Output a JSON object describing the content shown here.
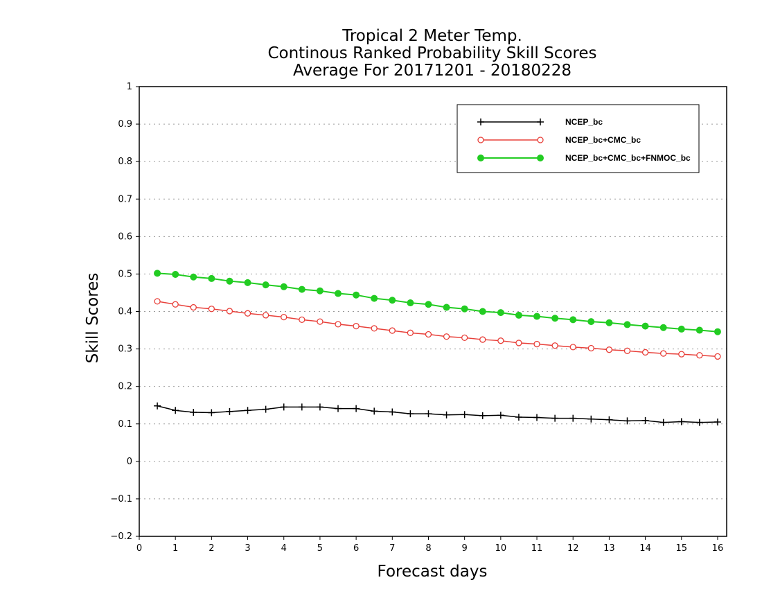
{
  "colors": {
    "NCEP_bc": "#000000",
    "NCEP_bc+CMC_bc": "#e8403a",
    "NCEP_bc+CMC_bc+FNMOC_bc": "#22cc22",
    "grid": "#9a9a9a"
  },
  "chart_data": {
    "type": "line",
    "title": [
      "Tropical 2 Meter Temp.",
      "Continous Ranked Probability Skill Scores",
      "Average For 20171201 - 20180228"
    ],
    "xlabel": "Forecast days",
    "ylabel": "Skill Scores",
    "xlim": [
      0,
      16.25
    ],
    "ylim": [
      -0.2,
      1
    ],
    "x_ticks": [
      0,
      1,
      2,
      3,
      4,
      5,
      6,
      7,
      8,
      9,
      10,
      11,
      12,
      13,
      14,
      15,
      16
    ],
    "y_ticks": [
      -0.2,
      -0.1,
      0,
      0.1,
      0.2,
      0.3,
      0.4,
      0.5,
      0.6,
      0.7,
      0.8,
      0.9,
      1
    ],
    "grid": "y-dotted",
    "legend_position": "top-right",
    "x": [
      0.5,
      1,
      1.5,
      2,
      2.5,
      3,
      3.5,
      4,
      4.5,
      5,
      5.5,
      6,
      6.5,
      7,
      7.5,
      8,
      8.5,
      9,
      9.5,
      10,
      10.5,
      11,
      11.5,
      12,
      12.5,
      13,
      13.5,
      14,
      14.5,
      15,
      15.5,
      16
    ],
    "series": [
      {
        "name": "NCEP_bc",
        "marker": "plus",
        "values": [
          0.148,
          0.136,
          0.131,
          0.13,
          0.133,
          0.136,
          0.139,
          0.145,
          0.145,
          0.145,
          0.141,
          0.141,
          0.134,
          0.132,
          0.127,
          0.127,
          0.124,
          0.125,
          0.122,
          0.123,
          0.118,
          0.117,
          0.115,
          0.115,
          0.113,
          0.111,
          0.108,
          0.109,
          0.104,
          0.106,
          0.104,
          0.105
        ]
      },
      {
        "name": "NCEP_bc+CMC_bc",
        "marker": "open-circle",
        "values": [
          0.427,
          0.419,
          0.411,
          0.407,
          0.401,
          0.395,
          0.39,
          0.385,
          0.378,
          0.373,
          0.366,
          0.361,
          0.355,
          0.349,
          0.343,
          0.339,
          0.333,
          0.33,
          0.325,
          0.322,
          0.316,
          0.313,
          0.309,
          0.305,
          0.302,
          0.298,
          0.295,
          0.291,
          0.288,
          0.286,
          0.283,
          0.28
        ]
      },
      {
        "name": "NCEP_bc+CMC_bc+FNMOC_bc",
        "marker": "filled-circle",
        "values": [
          0.502,
          0.499,
          0.492,
          0.488,
          0.481,
          0.477,
          0.471,
          0.466,
          0.459,
          0.455,
          0.448,
          0.444,
          0.435,
          0.43,
          0.423,
          0.419,
          0.411,
          0.407,
          0.4,
          0.397,
          0.39,
          0.387,
          0.382,
          0.378,
          0.373,
          0.37,
          0.365,
          0.361,
          0.357,
          0.353,
          0.35,
          0.346
        ]
      }
    ]
  }
}
